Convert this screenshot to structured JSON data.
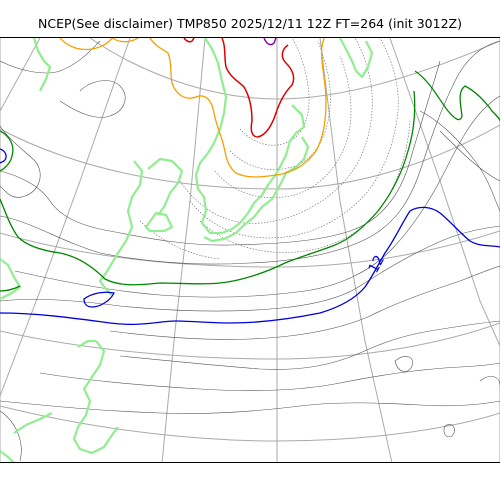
{
  "title": "NCEP(See disclaimer) TMP850 2025/12/11 12Z FT=264 (init 3012Z)",
  "contour_label": "12",
  "colors": {
    "grid": "#aaaaaa",
    "coastline": "#90ee90",
    "isotherm": "#555555",
    "contour_12": "#0000dd",
    "contour_green": "#008800",
    "contour_orange": "#f5a000",
    "contour_red": "#dd0000"
  }
}
